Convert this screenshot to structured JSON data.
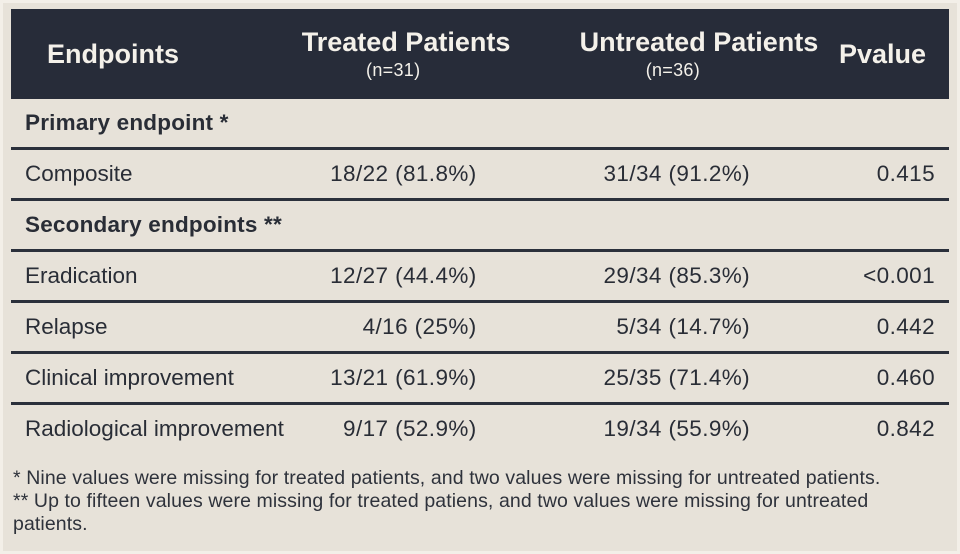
{
  "table": {
    "header": {
      "endpoints": "Endpoints",
      "treated": "Treated Patients",
      "treated_n": "(n=31)",
      "untreated": "Untreated Patients",
      "untreated_n": "(n=36)",
      "pvalue": "Pvalue"
    },
    "rows": [
      {
        "type": "section",
        "label": "Primary endpoint *"
      },
      {
        "type": "data",
        "endpoint": "Composite",
        "treated": "18/22 (81.8%)",
        "untreated": "31/34 (91.2%)",
        "pvalue": "0.415"
      },
      {
        "type": "section",
        "label": "Secondary endpoints **"
      },
      {
        "type": "data",
        "endpoint": "Eradication",
        "treated": "12/27 (44.4%)",
        "untreated": "29/34 (85.3%)",
        "pvalue": "<0.001"
      },
      {
        "type": "data",
        "endpoint": "Relapse",
        "treated": "4/16 (25%)",
        "untreated": "5/34 (14.7%)",
        "pvalue": "0.442"
      },
      {
        "type": "data",
        "endpoint": "Clinical improvement",
        "treated": "13/21 (61.9%)",
        "untreated": "25/35 (71.4%)",
        "pvalue": "0.460"
      },
      {
        "type": "data",
        "endpoint": "Radiological improvement",
        "treated": "9/17 (52.9%)",
        "untreated": "19/34 (55.9%)",
        "pvalue": "0.842"
      }
    ]
  },
  "footnotes": [
    "* Nine values were missing for treated patients, and two values were missing for untreated patients.",
    "** Up to fifteen values were missing for treated patiens, and two values were missing for untreated patients."
  ],
  "colors": {
    "header_bg": "#272c39",
    "header_text": "#f4f1ea",
    "body_bg": "#e7e2d9",
    "body_text": "#292d36",
    "separator": "#2b303b"
  }
}
